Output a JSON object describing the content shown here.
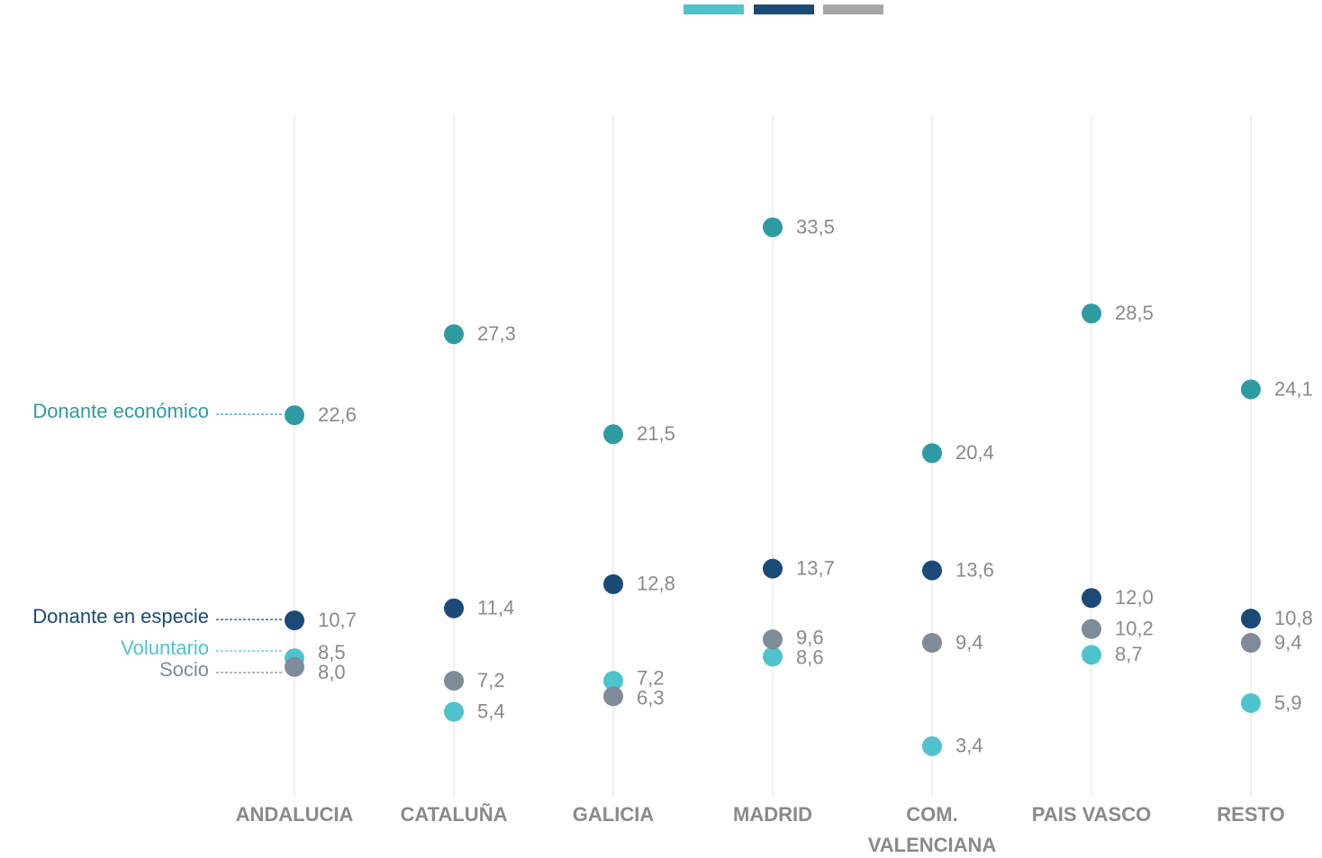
{
  "chart_data": {
    "type": "dot",
    "categories": [
      "ANDALUCIA",
      "CATALUÑA",
      "GALICIA",
      "MADRID",
      "COM. VALENCIANA",
      "PAIS VASCO",
      "RESTO"
    ],
    "ylim": [
      0,
      40
    ],
    "series": [
      {
        "name": "Donante económico",
        "color": "#2e9ba0",
        "values": [
          22.6,
          27.3,
          21.5,
          33.5,
          20.4,
          28.5,
          24.1
        ],
        "value_labels": [
          "22,6",
          "27,3",
          "21,5",
          "33,5",
          "20,4",
          "28,5",
          "24,1"
        ]
      },
      {
        "name": "Donante en especie",
        "color": "#1b4a78",
        "values": [
          10.7,
          11.4,
          12.8,
          13.7,
          13.6,
          12.0,
          10.8
        ],
        "value_labels": [
          "10,7",
          "11,4",
          "12,8",
          "13,7",
          "13,6",
          "12,0",
          "10,8"
        ]
      },
      {
        "name": "Voluntario",
        "color": "#4fc3cc",
        "values": [
          8.5,
          5.4,
          7.2,
          8.6,
          3.4,
          8.7,
          5.9
        ],
        "value_labels": [
          "8,5",
          "5,4",
          "7,2",
          "8,6",
          "3,4",
          "8,7",
          "5,9"
        ]
      },
      {
        "name": "Socio",
        "color": "#7f8b98",
        "values": [
          8.0,
          7.2,
          6.3,
          9.6,
          9.4,
          10.2,
          9.4
        ],
        "value_labels": [
          "8,0",
          "7,2",
          "6,3",
          "9,6",
          "9,4",
          "10,2",
          "9,4"
        ]
      }
    ]
  }
}
